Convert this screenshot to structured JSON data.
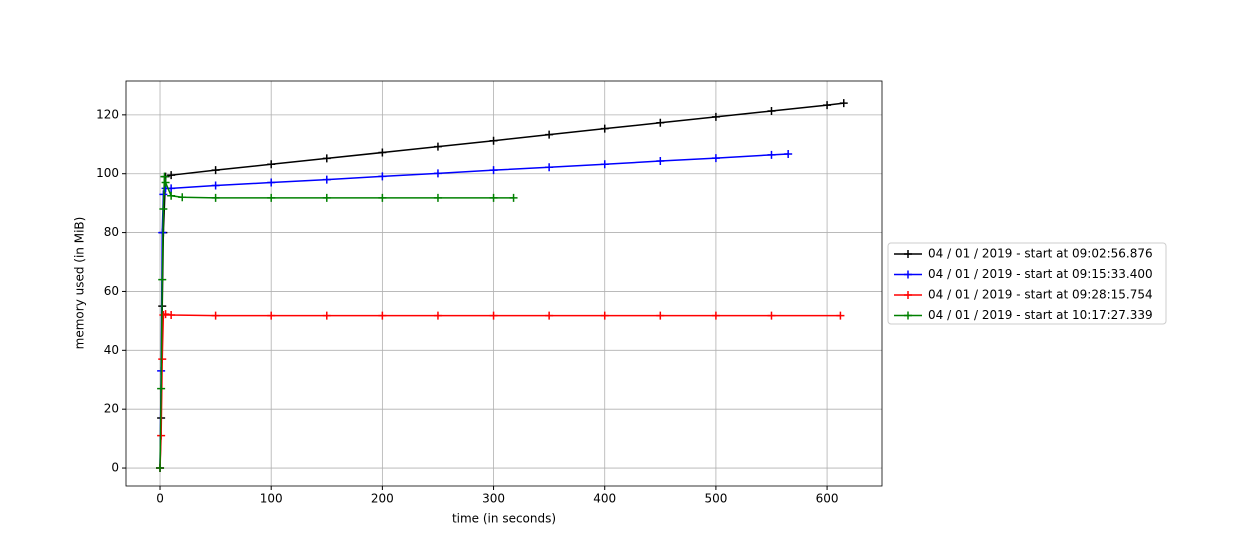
{
  "chart_data": {
    "type": "line",
    "xlabel": "time (in seconds)",
    "ylabel": "memory used (in MiB)",
    "xlim": [
      -30.6,
      649.4
    ],
    "ylim": [
      -6.1,
      131.5
    ],
    "xticks": [
      0,
      100,
      200,
      300,
      400,
      500,
      600
    ],
    "yticks": [
      0,
      20,
      40,
      60,
      80,
      100,
      120
    ],
    "grid": true,
    "legend": "outside right",
    "marker": "+",
    "series": [
      {
        "name": "04 / 01 / 2019 - start at 09:02:56.876",
        "color": "#000000",
        "x": [
          0,
          1,
          2,
          3,
          5,
          10,
          50,
          100,
          150,
          200,
          250,
          300,
          350,
          400,
          450,
          500,
          550,
          600,
          615
        ],
        "values": [
          0,
          17,
          55,
          80,
          99,
          99.5,
          101.2,
          103.2,
          105.2,
          107.2,
          109.2,
          111.2,
          113.3,
          115.3,
          117.3,
          119.3,
          121.3,
          123.3,
          124
        ]
      },
      {
        "name": "04 / 01 / 2019 - start at 09:15:33.400",
        "color": "#0000ff",
        "x": [
          0,
          1,
          2,
          3,
          5,
          10,
          50,
          100,
          150,
          200,
          250,
          300,
          350,
          400,
          450,
          500,
          550,
          565
        ],
        "values": [
          0,
          33,
          80,
          93,
          95,
          95,
          96,
          97,
          98,
          99.1,
          100.1,
          101.2,
          102.2,
          103.2,
          104.3,
          105.3,
          106.4,
          106.7
        ]
      },
      {
        "name": "04 / 01 / 2019 - start at 09:28:15.754",
        "color": "#ff0000",
        "x": [
          0,
          1,
          2,
          3,
          5,
          10,
          50,
          100,
          150,
          200,
          250,
          300,
          350,
          400,
          450,
          500,
          550,
          612
        ],
        "values": [
          0,
          11,
          37,
          52,
          52.3,
          52,
          51.8,
          51.8,
          51.8,
          51.8,
          51.8,
          51.8,
          51.8,
          51.8,
          51.8,
          51.8,
          51.8,
          51.8
        ]
      },
      {
        "name": "04 / 01 / 2019 - start at 10:17:27.339",
        "color": "#008000",
        "x": [
          0,
          1,
          2,
          3,
          4,
          5,
          10,
          20,
          50,
          100,
          150,
          200,
          250,
          300,
          318
        ],
        "values": [
          0,
          27,
          64,
          88,
          99,
          97,
          92.5,
          92,
          91.8,
          91.8,
          91.8,
          91.8,
          91.8,
          91.8,
          91.8
        ]
      }
    ]
  }
}
